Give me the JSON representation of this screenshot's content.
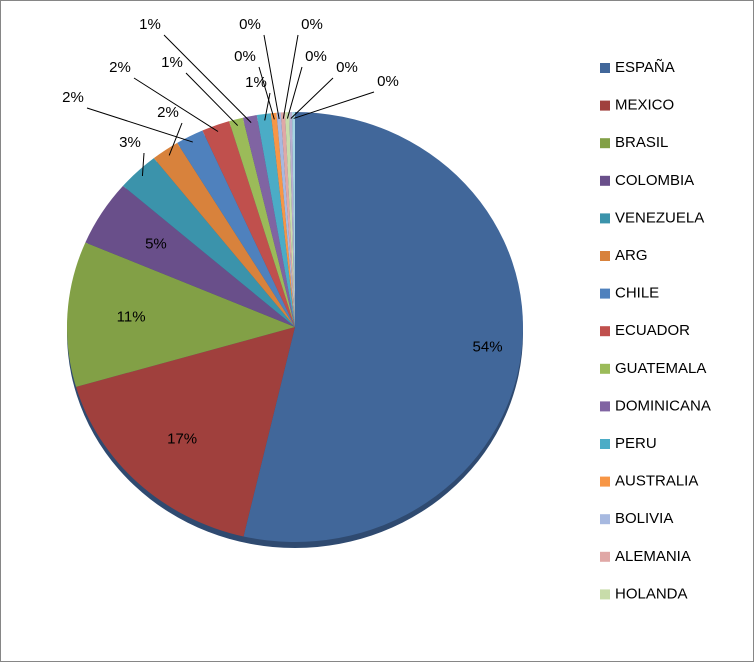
{
  "chart_data": {
    "type": "pie",
    "categories": [
      "ESPAÑA",
      "MEXICO",
      "BRASIL",
      "COLOMBIA",
      "VENEZUELA",
      "ARG",
      "CHILE",
      "ECUADOR",
      "GUATEMALA",
      "DOMINICANA",
      "PERU",
      "AUSTRALIA",
      "BOLIVIA",
      "ALEMANIA",
      "HOLANDA",
      null,
      null
    ],
    "values": [
      54,
      17,
      11,
      5,
      3,
      2,
      2,
      2,
      1,
      1,
      1,
      0.4,
      0.3,
      0.3,
      0.3,
      0.2,
      0.2
    ],
    "value_labels": [
      "54%",
      "17%",
      "11%",
      "5%",
      "3%",
      "2%",
      "2%",
      "2%",
      "1%",
      "1%",
      "1%",
      "0%",
      "0%",
      "0%",
      "0%",
      "0%",
      "0%"
    ],
    "colors": [
      "#41679a",
      "#a0403d",
      "#82a046",
      "#694f8a",
      "#3b93ab",
      "#d8823c",
      "#4f81bd",
      "#c0504d",
      "#9bbb59",
      "#8064a2",
      "#4bacc6",
      "#f79646",
      "#a7b9e0",
      "#e0a8a6",
      "#c8dcaa",
      "#b9aed0",
      "#a5d5e2"
    ],
    "legend": "right"
  }
}
